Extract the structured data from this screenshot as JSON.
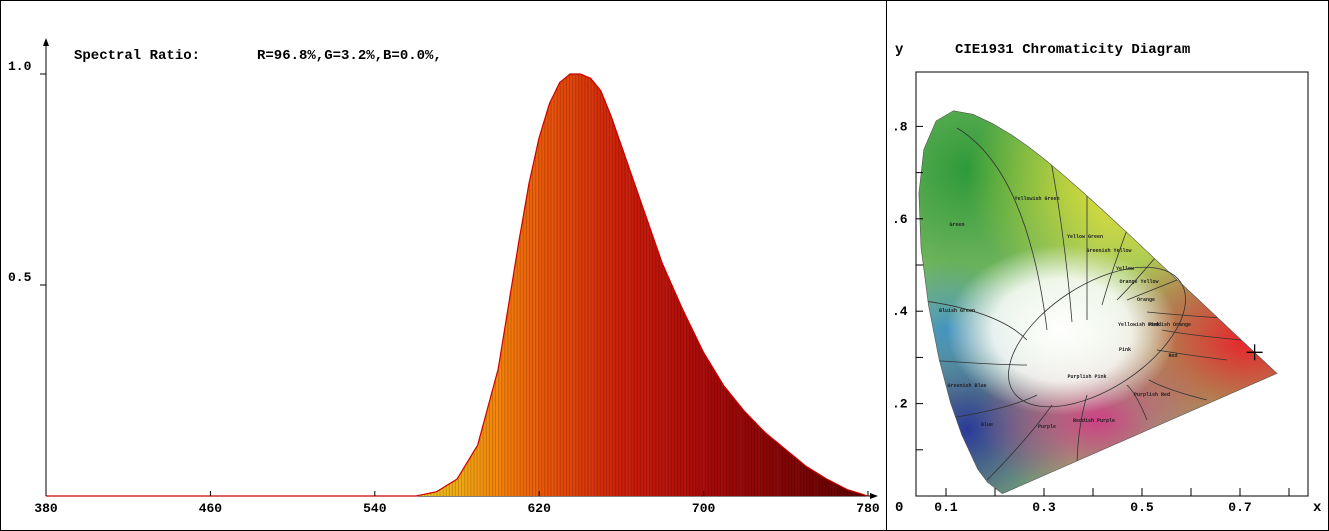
{
  "spectral_ratio": {
    "label": "Spectral Ratio:",
    "value": "R=96.8%,G=3.2%,B=0.0%,"
  },
  "cie": {
    "title": "CIE1931 Chromaticity Diagram",
    "y_label": "y",
    "x_label": "x",
    "origin_label": "0",
    "region_labels": [
      "Yellowish Green",
      "Green",
      "Yellow Green",
      "Greenish Yellow",
      "Yellow",
      "Orange Yellow",
      "Orange",
      "Bluish Green",
      "Yellowish Pink",
      "Reddish Orange",
      "Pink",
      "Red",
      "Purplish Pink",
      "Greenish Blue",
      "Purplish Red",
      "Reddish Purple",
      "Blue",
      "Purple"
    ]
  },
  "chart_data": [
    {
      "type": "area",
      "title": "",
      "xlabel": "",
      "ylabel": "",
      "xlim": [
        380,
        780
      ],
      "ylim": [
        0,
        1.0
      ],
      "x_ticks": [
        "380",
        "460",
        "540",
        "620",
        "700",
        "780"
      ],
      "y_ticks": [
        "0.5",
        "1.0"
      ],
      "series": [
        {
          "x": [
            380,
            560,
            570,
            580,
            590,
            600,
            605,
            610,
            615,
            620,
            625,
            630,
            635,
            640,
            645,
            650,
            655,
            660,
            665,
            670,
            680,
            690,
            700,
            710,
            720,
            730,
            740,
            750,
            760,
            770,
            780
          ],
          "y": [
            0,
            0,
            0.01,
            0.04,
            0.12,
            0.3,
            0.45,
            0.6,
            0.74,
            0.85,
            0.93,
            0.98,
            1.0,
            1.0,
            0.99,
            0.96,
            0.9,
            0.83,
            0.76,
            0.69,
            0.55,
            0.44,
            0.34,
            0.26,
            0.2,
            0.15,
            0.11,
            0.07,
            0.04,
            0.015,
            0.0
          ]
        }
      ]
    },
    {
      "type": "scatter",
      "title": "CIE1931 Chromaticity Diagram",
      "xlabel": "x",
      "ylabel": "y",
      "xlim": [
        0,
        0.8
      ],
      "ylim": [
        0,
        0.9
      ],
      "x_ticks": [
        "0.1",
        "0.3",
        "0.5",
        "0.7"
      ],
      "y_ticks": [
        ".2",
        ".4",
        ".6",
        ".8"
      ],
      "series": [
        {
          "x": [
            0.689
          ],
          "y": [
            0.311
          ]
        }
      ]
    }
  ]
}
